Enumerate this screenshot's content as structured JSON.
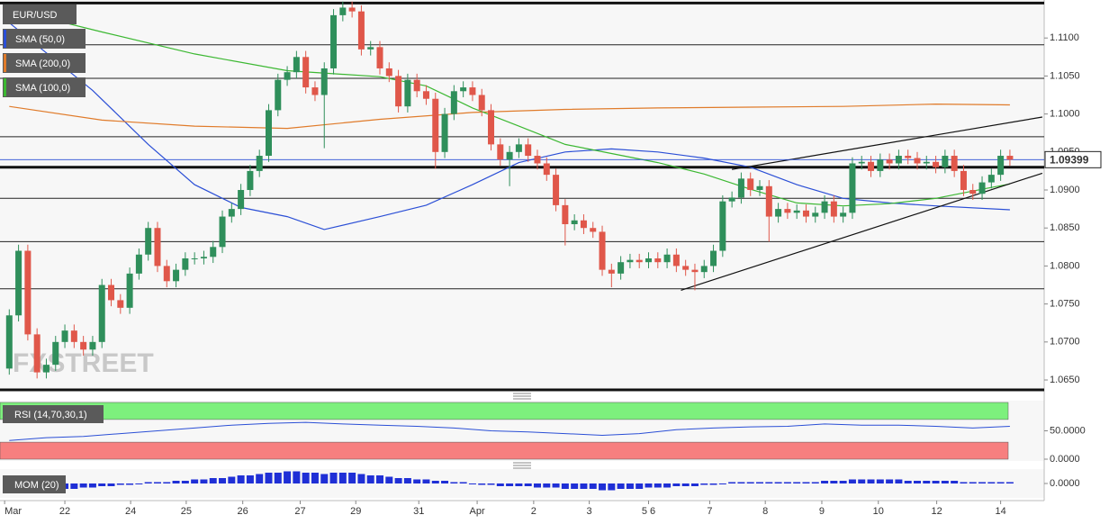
{
  "chart_data": [
    {
      "type": "candlestick",
      "title": "EUR/USD",
      "watermark": "FXSTREET",
      "up_color": "#2f8f5b",
      "down_color": "#e0574a",
      "xlim": [
        -1,
        111.7
      ],
      "xticks": [
        {
          "value": -0.5,
          "label": "Mar"
        },
        {
          "value": 6,
          "label": "22"
        },
        {
          "value": 13.1,
          "label": "24"
        },
        {
          "value": 19.1,
          "label": "25"
        },
        {
          "value": 25.2,
          "label": "26"
        },
        {
          "value": 31.4,
          "label": "27"
        },
        {
          "value": 37.4,
          "label": "29"
        },
        {
          "value": 44.2,
          "label": "31"
        },
        {
          "value": 50.5,
          "label": "Apr"
        },
        {
          "value": 56.6,
          "label": "2"
        },
        {
          "value": 62.6,
          "label": "3"
        },
        {
          "value": 69,
          "label": "5 6"
        },
        {
          "value": 75.6,
          "label": "7"
        },
        {
          "value": 81.6,
          "label": "8"
        },
        {
          "value": 87.7,
          "label": "9"
        },
        {
          "value": 93.8,
          "label": "10"
        },
        {
          "value": 100.1,
          "label": "12"
        },
        {
          "value": 107,
          "label": "14"
        }
      ],
      "ylim": [
        1.0637,
        1.115
      ],
      "yticks": [
        {
          "value": 1.11,
          "label": "1.1100"
        },
        {
          "value": 1.105,
          "label": "1.1050"
        },
        {
          "value": 1.1,
          "label": "1.1000"
        },
        {
          "value": 1.095,
          "label": "1.0950"
        },
        {
          "value": 1.09,
          "label": "1.0900"
        },
        {
          "value": 1.085,
          "label": "1.0850"
        },
        {
          "value": 1.08,
          "label": "1.0800"
        },
        {
          "value": 1.075,
          "label": "1.0750"
        },
        {
          "value": 1.07,
          "label": "1.0700"
        },
        {
          "value": 1.065,
          "label": "1.0650"
        }
      ],
      "open": [
        1.0665,
        1.0735,
        1.082,
        1.071,
        1.066,
        1.067,
        1.07,
        1.0715,
        1.07,
        1.069,
        1.07,
        1.0775,
        1.0755,
        1.0745,
        1.079,
        1.0815,
        1.085,
        1.08,
        1.078,
        1.0795,
        1.081,
        1.081,
        1.0812,
        1.0825,
        1.0865,
        1.0875,
        1.09,
        1.0925,
        1.0945,
        1.1005,
        1.1045,
        1.1055,
        1.1075,
        1.1035,
        1.1025,
        1.106,
        1.113,
        1.114,
        1.1135,
        1.1085,
        1.1088,
        1.106,
        1.105,
        1.101,
        1.1045,
        1.103,
        1.102,
        1.095,
        1.1,
        1.103,
        1.1035,
        1.1025,
        1.1005,
        1.096,
        1.094,
        1.095,
        1.096,
        1.0945,
        1.0935,
        1.092,
        1.088,
        1.0855,
        1.086,
        1.085,
        1.0845,
        1.0795,
        1.079,
        1.0805,
        1.0808,
        1.0805,
        1.081,
        1.0805,
        1.0815,
        1.08,
        1.0795,
        1.0792,
        1.08,
        1.082,
        1.0885,
        1.089,
        1.0915,
        1.09,
        1.0905,
        1.0865,
        1.0875,
        1.087,
        1.0873,
        1.0865,
        1.087,
        1.0885,
        1.0865,
        1.087,
        1.0935,
        1.0937,
        1.0925,
        1.094,
        1.0935,
        1.0945,
        1.0942,
        1.0935,
        1.0937,
        1.093,
        1.0945,
        1.0925,
        1.09,
        1.0895,
        1.091,
        1.092,
        1.0945
      ],
      "high": [
        1.0743,
        1.0828,
        1.0828,
        1.0718,
        1.0678,
        1.0708,
        1.0723,
        1.0723,
        1.0708,
        1.0708,
        1.0783,
        1.0783,
        1.0763,
        1.0798,
        1.0823,
        1.0858,
        1.0858,
        1.0808,
        1.0803,
        1.0818,
        1.0818,
        1.082,
        1.0833,
        1.0873,
        1.0883,
        1.0908,
        1.0933,
        1.0953,
        1.1013,
        1.1053,
        1.1063,
        1.1083,
        1.1083,
        1.1043,
        1.1068,
        1.1138,
        1.1148,
        1.1148,
        1.1143,
        1.1096,
        1.1096,
        1.1068,
        1.1058,
        1.1053,
        1.1053,
        1.1038,
        1.1028,
        1.1008,
        1.1038,
        1.1043,
        1.1043,
        1.1033,
        1.1013,
        1.0968,
        1.0958,
        1.0968,
        1.0968,
        1.0953,
        1.0943,
        1.0928,
        1.0888,
        1.0868,
        1.0868,
        1.0858,
        1.0853,
        1.0803,
        1.0813,
        1.0816,
        1.0816,
        1.0818,
        1.0818,
        1.0823,
        1.0823,
        1.0808,
        1.0803,
        1.0808,
        1.0828,
        1.0893,
        1.0898,
        1.0923,
        1.0923,
        1.0913,
        1.0913,
        1.0883,
        1.0883,
        1.0881,
        1.0881,
        1.0878,
        1.0893,
        1.0893,
        1.0878,
        1.0943,
        1.0945,
        1.0945,
        1.0948,
        1.0948,
        1.0953,
        1.0953,
        1.095,
        1.0945,
        1.0945,
        1.0953,
        1.0953,
        1.0933,
        1.0908,
        1.0918,
        1.0928,
        1.0953,
        1.0953
      ],
      "low": [
        1.0657,
        1.0727,
        1.0702,
        1.0652,
        1.0652,
        1.0662,
        1.0692,
        1.0692,
        1.0682,
        1.0682,
        1.0692,
        1.0747,
        1.0737,
        1.0737,
        1.0782,
        1.0807,
        1.0792,
        1.0772,
        1.0772,
        1.0787,
        1.0802,
        1.0802,
        1.0804,
        1.0817,
        1.0857,
        1.0867,
        1.0892,
        1.0917,
        1.0937,
        1.0997,
        1.1037,
        1.1047,
        1.1027,
        1.1017,
        1.0955,
        1.1052,
        1.1122,
        1.1127,
        1.1077,
        1.1077,
        1.1052,
        1.1042,
        1.1002,
        1.1002,
        1.1022,
        1.1012,
        1.0928,
        1.0942,
        1.0992,
        1.1022,
        1.1017,
        1.0997,
        1.0952,
        1.0932,
        1.0905,
        1.0942,
        1.0937,
        1.0927,
        1.0912,
        1.0872,
        1.0827,
        1.0847,
        1.0842,
        1.0837,
        1.0787,
        1.0772,
        1.0782,
        1.0797,
        1.0797,
        1.0797,
        1.0797,
        1.0797,
        1.0792,
        1.0787,
        1.0768,
        1.0784,
        1.0792,
        1.0812,
        1.0877,
        1.0882,
        1.0892,
        1.0892,
        1.0832,
        1.0857,
        1.0862,
        1.0862,
        1.0857,
        1.0857,
        1.0862,
        1.0857,
        1.0857,
        1.0862,
        1.0927,
        1.0917,
        1.0917,
        1.0927,
        1.0927,
        1.0934,
        1.0927,
        1.0927,
        1.0922,
        1.0922,
        1.0917,
        1.0892,
        1.0887,
        1.0887,
        1.0902,
        1.0912,
        1.0932
      ],
      "close": [
        1.0735,
        1.082,
        1.071,
        1.066,
        1.067,
        1.07,
        1.0715,
        1.07,
        1.069,
        1.07,
        1.0775,
        1.0755,
        1.0745,
        1.079,
        1.0815,
        1.085,
        1.08,
        1.078,
        1.0795,
        1.081,
        1.081,
        1.0812,
        1.0825,
        1.0865,
        1.0875,
        1.09,
        1.0925,
        1.0945,
        1.1005,
        1.1045,
        1.1055,
        1.1075,
        1.1035,
        1.1025,
        1.106,
        1.113,
        1.114,
        1.1135,
        1.1085,
        1.1088,
        1.106,
        1.105,
        1.101,
        1.1045,
        1.103,
        1.102,
        1.095,
        1.1,
        1.103,
        1.1035,
        1.1025,
        1.1005,
        1.096,
        1.094,
        1.095,
        1.096,
        1.0945,
        1.0935,
        1.092,
        1.088,
        1.0855,
        1.086,
        1.085,
        1.0845,
        1.0795,
        1.079,
        1.0805,
        1.0808,
        1.0805,
        1.081,
        1.0805,
        1.0815,
        1.08,
        1.0795,
        1.0792,
        1.08,
        1.082,
        1.0885,
        1.089,
        1.0915,
        1.09,
        1.0905,
        1.0865,
        1.0875,
        1.087,
        1.0873,
        1.0865,
        1.087,
        1.0885,
        1.0865,
        1.087,
        1.0935,
        1.0937,
        1.0925,
        1.094,
        1.0935,
        1.0945,
        1.0942,
        1.0935,
        1.0937,
        1.093,
        1.0945,
        1.0925,
        1.09,
        1.0895,
        1.091,
        1.092,
        1.0945,
        1.09399
      ],
      "series": [
        {
          "name": "SMA (50,0)",
          "color": "#2b4fd6",
          "x": [
            0,
            9,
            15,
            20,
            25,
            30,
            34,
            40,
            45,
            50,
            55,
            60,
            65,
            70,
            75,
            80,
            85,
            90,
            95,
            100,
            108
          ],
          "values": [
            1.112,
            1.1031,
            1.096,
            1.0907,
            1.0877,
            1.0865,
            1.0848,
            1.0865,
            1.088,
            1.0907,
            1.0936,
            1.095,
            1.0954,
            1.095,
            1.0942,
            1.093,
            1.0907,
            1.0889,
            1.0883,
            1.0879,
            1.0874
          ]
        },
        {
          "name": "SMA (200,0)",
          "color": "#e07b2a",
          "x": [
            0,
            10,
            20,
            30,
            40,
            50,
            60,
            70,
            80,
            90,
            100,
            108
          ],
          "values": [
            1.101,
            1.0992,
            1.0984,
            1.0981,
            1.0993,
            1.1002,
            1.1006,
            1.1008,
            1.1009,
            1.101,
            1.1013,
            1.1012
          ]
        },
        {
          "name": "SMA (100,0)",
          "color": "#3cb832",
          "x": [
            0,
            10,
            20,
            30,
            40,
            45,
            50,
            55,
            60,
            65,
            70,
            75,
            80,
            85,
            90,
            95,
            100,
            105,
            108
          ],
          "values": [
            1.1138,
            1.1108,
            1.1079,
            1.1057,
            1.1049,
            1.1037,
            1.1008,
            1.0984,
            1.096,
            1.0948,
            1.0936,
            1.0921,
            1.0901,
            1.0883,
            1.0879,
            1.0882,
            1.0889,
            1.0901,
            1.0908
          ]
        }
      ],
      "levels": [
        1.1091,
        1.1047,
        1.097,
        1.0889,
        1.0832,
        1.077
      ],
      "key_levels": [
        1.1146,
        1.093,
        1.0637
      ],
      "trendlines": [
        {
          "x": [
            72.5,
            111.5
          ],
          "values": [
            1.0768,
            1.0922
          ]
        },
        {
          "x": [
            78,
            111.5
          ],
          "values": [
            1.0927,
            1.0996
          ]
        }
      ]
    },
    {
      "type": "line",
      "title": "RSI (14,70,30,1)",
      "color": "#2b4fd6",
      "x": [
        0,
        4,
        8,
        12,
        16,
        20,
        24,
        28,
        32,
        36,
        40,
        44,
        48,
        52,
        56,
        60,
        64,
        68,
        72,
        76,
        80,
        84,
        88,
        92,
        96,
        100,
        104,
        108
      ],
      "values": [
        33,
        38,
        40,
        45,
        50,
        55,
        60,
        63,
        65,
        62,
        60,
        58,
        55,
        50,
        48,
        45,
        42,
        45,
        52,
        55,
        57,
        58,
        62,
        60,
        60,
        58,
        55,
        58
      ],
      "ylim": [
        0,
        100
      ],
      "yticks": [
        {
          "value": 50,
          "label": "50.0000"
        },
        {
          "value": 0,
          "label": "0.0000"
        }
      ],
      "bands": [
        {
          "from": 70,
          "to": 100,
          "color": "#7df07d"
        },
        {
          "from": 0,
          "to": 30,
          "color": "#f77f7f"
        }
      ]
    },
    {
      "type": "bar",
      "title": "MOM (20)",
      "color": "#1f2fd6",
      "values": [
        -0.004,
        -0.005,
        -0.006,
        -0.006,
        -0.005,
        -0.005,
        -0.004,
        -0.004,
        -0.003,
        -0.003,
        -0.002,
        -0.002,
        -0.001,
        -0.001,
        0.0,
        0.001,
        0.001,
        0.001,
        0.002,
        0.002,
        0.003,
        0.003,
        0.004,
        0.004,
        0.005,
        0.006,
        0.006,
        0.007,
        0.008,
        0.008,
        0.009,
        0.009,
        0.008,
        0.008,
        0.007,
        0.008,
        0.008,
        0.008,
        0.007,
        0.006,
        0.006,
        0.005,
        0.004,
        0.004,
        0.003,
        0.003,
        0.002,
        0.002,
        0.001,
        0.001,
        0.0,
        -0.001,
        -0.001,
        -0.002,
        -0.002,
        -0.002,
        -0.002,
        -0.003,
        -0.003,
        -0.003,
        -0.004,
        -0.004,
        -0.004,
        -0.004,
        -0.005,
        -0.005,
        -0.004,
        -0.004,
        -0.004,
        -0.003,
        -0.003,
        -0.003,
        -0.002,
        -0.002,
        -0.002,
        -0.001,
        -0.001,
        0.0,
        0.001,
        0.001,
        0.001,
        0.001,
        0.001,
        0.001,
        0.001,
        0.001,
        0.001,
        0.001,
        0.002,
        0.002,
        0.002,
        0.003,
        0.003,
        0.003,
        0.003,
        0.003,
        0.003,
        0.002,
        0.002,
        0.002,
        0.002,
        0.002,
        0.002,
        0.001,
        0.001,
        0.001,
        0.001,
        0.001,
        0.001
      ],
      "ylim": [
        -0.01,
        0.01
      ],
      "yticks": [
        {
          "value": 0,
          "label": "0.0000"
        }
      ]
    }
  ]
}
